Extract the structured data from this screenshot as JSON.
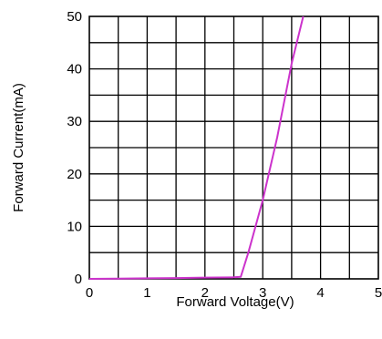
{
  "chart_data": {
    "type": "line",
    "title": "",
    "xlabel": "Forward Voltage(V)",
    "ylabel": "Forward Current(mA)",
    "xlim": [
      0,
      5
    ],
    "ylim": [
      0,
      50
    ],
    "x_ticks": [
      "0",
      "1",
      "2",
      "3",
      "4",
      "5"
    ],
    "y_ticks": [
      "0",
      "10",
      "20",
      "30",
      "40",
      "50"
    ],
    "x_minor_step": 0.5,
    "y_minor_step": 5,
    "grid": true,
    "line_color": "#cc33cc",
    "series": [
      {
        "x": [
          0,
          0.5,
          1.0,
          1.5,
          2.0,
          2.5,
          2.62,
          2.75,
          3.0,
          3.25,
          3.5,
          3.7
        ],
        "y": [
          0,
          0.05,
          0.1,
          0.15,
          0.25,
          0.3,
          0.4,
          5,
          15,
          27,
          41,
          50
        ]
      }
    ]
  }
}
